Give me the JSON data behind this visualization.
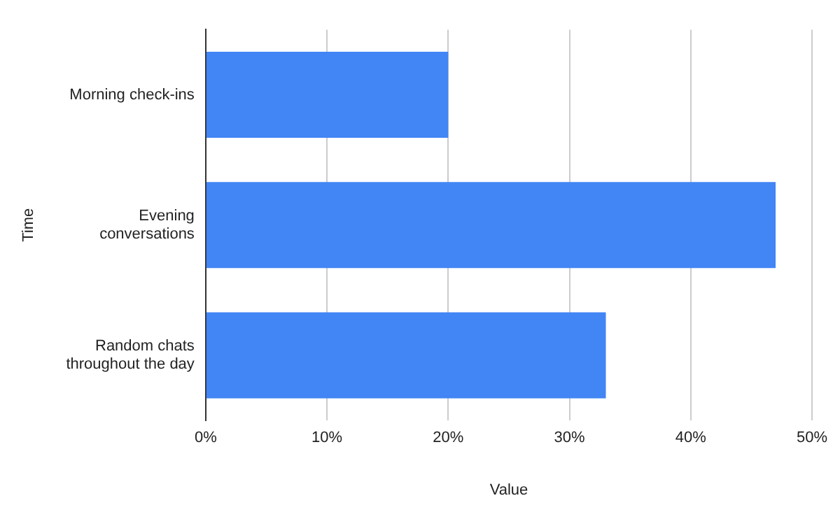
{
  "chart_data": {
    "type": "bar",
    "orientation": "horizontal",
    "xlabel": "Value",
    "ylabel": "Time",
    "categories": [
      "Morning check-ins",
      "Evening conversations",
      "Random chats throughout the day"
    ],
    "values": [
      20,
      47,
      33
    ],
    "color": "#4285f4",
    "xlim": [
      0,
      50
    ],
    "xticks": [
      {
        "value": 0,
        "label": "0%"
      },
      {
        "value": 10,
        "label": "10%"
      },
      {
        "value": 20,
        "label": "20%"
      },
      {
        "value": 30,
        "label": "30%"
      },
      {
        "value": 40,
        "label": "40%"
      },
      {
        "value": 50,
        "label": "50%"
      }
    ],
    "grid": "x",
    "legend": false
  }
}
